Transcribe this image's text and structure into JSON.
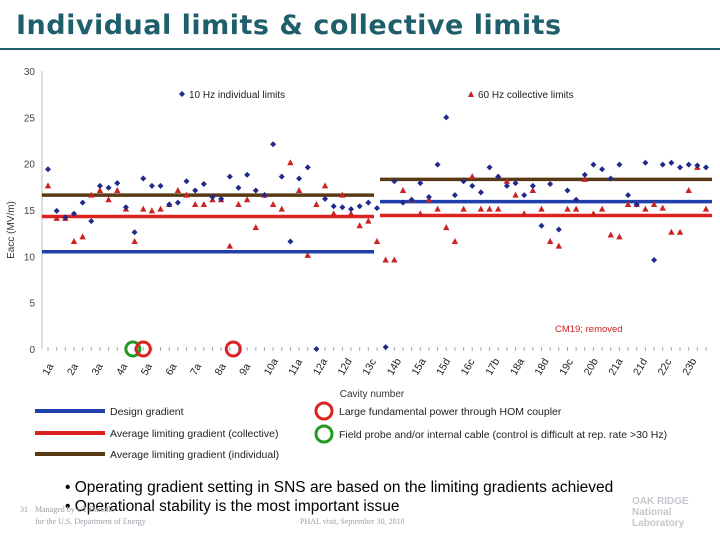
{
  "slide": {
    "title": "Individual limits & collective limits",
    "page_number": "31",
    "footer_left_1": "Managed by UT-Battelle",
    "footer_left_2": "for the U.S. Department of Energy",
    "footer_center": "PHAL visit, September 30, 2010",
    "logo": "OAK RIDGE National Laboratory",
    "bullets": [
      "Operating gradient setting in SNS are based on the limiting gradients achieved",
      "Operational stability is the most important issue"
    ]
  },
  "chart_data": {
    "type": "scatter",
    "title": "",
    "xlabel": "Cavity number",
    "ylabel": "Eacc (MV/m)",
    "ylim": [
      0,
      30
    ],
    "yticks": [
      0,
      5,
      10,
      15,
      20,
      25,
      30
    ],
    "xticks": [
      "1a",
      "2a",
      "3a",
      "4a",
      "5a",
      "6a",
      "7a",
      "8a",
      "9a",
      "10a",
      "11a",
      "12a",
      "12d",
      "13c",
      "14b",
      "15a",
      "15d",
      "16c",
      "17b",
      "18a",
      "18d",
      "19c",
      "20b",
      "21a",
      "21d",
      "22c",
      "23b"
    ],
    "legend": [
      "10 Hz individual limits",
      "60 Hz collective limits"
    ],
    "annotation": "CM19; removed",
    "marker_colors": {
      "individual": "#1f2a8a",
      "collective": "#cc2222"
    },
    "series": [
      {
        "name": "10 Hz individual limits",
        "values": [
          19.4,
          14.9,
          14.2,
          14.6,
          15.8,
          13.8,
          17.6,
          17.4,
          17.9,
          15.3,
          12.6,
          18.4,
          17.6,
          17.6,
          15.6,
          15.8,
          18.1,
          17.1,
          17.8,
          16.4,
          16.2,
          18.6,
          17.4,
          18.8,
          17.1,
          16.6,
          22.1,
          18.6,
          11.6,
          18.4,
          19.6,
          0,
          16.2,
          15.4,
          15.3,
          15.1,
          15.4,
          15.8,
          15.2,
          0.2,
          18.1,
          15.8,
          16.1,
          17.9,
          16.4,
          19.9,
          25.0,
          16.6,
          18.1,
          17.6,
          16.9,
          19.6,
          18.6,
          17.6,
          17.9,
          16.6,
          17.6,
          13.3,
          17.8,
          12.9,
          17.1,
          16.1,
          18.8,
          19.9,
          19.4,
          18.4,
          19.9,
          16.6,
          15.6,
          20.1,
          9.6,
          19.9,
          20.1,
          19.6,
          19.9,
          19.8,
          19.6
        ]
      },
      {
        "name": "60 Hz collective limits",
        "values": [
          17.6,
          14.1,
          14.1,
          11.6,
          12.1,
          16.6,
          17.1,
          16.1,
          17.1,
          15.1,
          11.6,
          15.1,
          14.9,
          15.1,
          15.6,
          17.1,
          16.6,
          15.6,
          15.6,
          16.1,
          16.1,
          11.1,
          15.6,
          16.1,
          13.1,
          16.6,
          15.6,
          15.1,
          20.1,
          17.1,
          10.1,
          15.6,
          17.6,
          14.6,
          16.6,
          14.6,
          13.3,
          13.8,
          11.6,
          9.6,
          9.6,
          17.1,
          16.1,
          14.6,
          16.1,
          15.1,
          13.1,
          11.6,
          15.1,
          18.6,
          15.1,
          15.1,
          15.1,
          18.1,
          16.6,
          14.6,
          17.1,
          15.1,
          11.6,
          11.1,
          15.1,
          15.1,
          18.3,
          14.6,
          15.1,
          12.3,
          12.1,
          15.6,
          15.6,
          15.1,
          15.6,
          15.2,
          12.6,
          12.6,
          17.1,
          19.6,
          15.1
        ]
      }
    ],
    "averages": [
      {
        "name": "Design gradient",
        "color": "#1f3faa",
        "segments": [
          {
            "from": 0,
            "to": 0.5,
            "value": 10.5
          },
          {
            "from": 0.5,
            "to": 1,
            "value": 15.9
          }
        ]
      },
      {
        "name": "Average limiting gradient (collective)",
        "color": "#dd2222",
        "segments": [
          {
            "from": 0,
            "to": 0.5,
            "value": 14.3
          },
          {
            "from": 0.5,
            "to": 1,
            "value": 14.4
          }
        ]
      },
      {
        "name": "Average limiting gradient (individual)",
        "color": "#5a3a14",
        "segments": [
          {
            "from": 0,
            "to": 0.5,
            "value": 16.6
          },
          {
            "from": 0.5,
            "to": 1,
            "value": 18.3
          }
        ]
      }
    ],
    "legend_lines": [
      "Design gradient",
      "Average limiting gradient (collective)",
      "Average limiting gradient (individual)"
    ],
    "legend_circles": [
      {
        "color": "#dd2222",
        "label": "Large fundamental power through HOM coupler"
      },
      {
        "color": "#229922",
        "label": "Field probe and/or internal cable (control is difficult at rep. rate >30 Hz)"
      }
    ],
    "highlighted_cavities": [
      {
        "index": 9.8,
        "color": "#229922"
      },
      {
        "index": 11.0,
        "color": "#dd2222"
      },
      {
        "index": 21.4,
        "color": "#dd2222"
      }
    ]
  }
}
